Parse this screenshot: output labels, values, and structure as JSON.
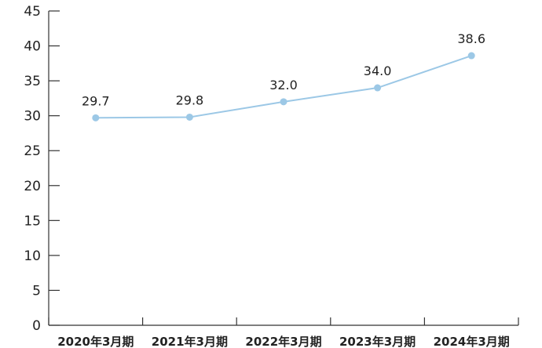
{
  "chart_data": {
    "type": "line",
    "title": "",
    "xlabel": "",
    "ylabel": "",
    "categories": [
      "2020年3月期",
      "2021年3月期",
      "2022年3月期",
      "2023年3月期",
      "2024年3月期"
    ],
    "series": [
      {
        "values": [
          29.7,
          29.8,
          32.0,
          34.0,
          38.6
        ],
        "labels": [
          "29.7",
          "29.8",
          "32.0",
          "34.0",
          "38.6"
        ]
      }
    ],
    "ylim": [
      0,
      45
    ],
    "yticks": [
      "0",
      "5",
      "10",
      "15",
      "20",
      "25",
      "30",
      "35",
      "40",
      "45"
    ],
    "grid": false,
    "legend": "none",
    "colors": {
      "line": "#9cc8e6",
      "marker": "#9cc8e6",
      "axis": "#333333"
    }
  }
}
